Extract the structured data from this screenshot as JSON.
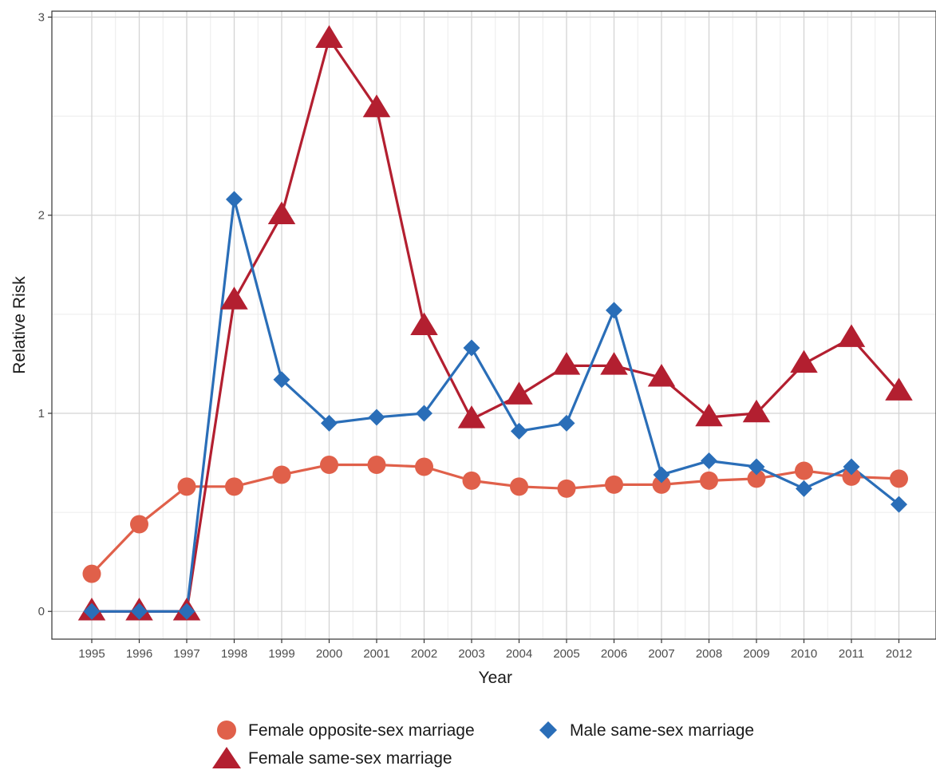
{
  "chart_data": {
    "type": "line",
    "title": "",
    "xlabel": "Year",
    "ylabel": "Relative Risk",
    "x": [
      "1995",
      "1996",
      "1997",
      "1998",
      "1999",
      "2000",
      "2001",
      "2002",
      "2003",
      "2004",
      "2005",
      "2006",
      "2007",
      "2008",
      "2009",
      "2010",
      "2011",
      "2012"
    ],
    "ylim": [
      -0.14,
      3.03
    ],
    "yticks": [
      "0",
      "1",
      "2",
      "3"
    ],
    "grid": true,
    "legend_position": "bottom",
    "series": [
      {
        "name": "Female opposite-sex marriage",
        "marker": "circle",
        "color": "#E0604A",
        "values": [
          0.19,
          0.44,
          0.63,
          0.63,
          0.69,
          0.74,
          0.74,
          0.73,
          0.66,
          0.63,
          0.62,
          0.64,
          0.64,
          0.66,
          0.67,
          0.71,
          0.68,
          0.67
        ]
      },
      {
        "name": "Male same-sex marriage",
        "marker": "diamond",
        "color": "#2A6EB8",
        "values": [
          0,
          0,
          0,
          2.08,
          1.17,
          0.95,
          0.98,
          1.0,
          1.33,
          0.91,
          0.95,
          1.52,
          0.69,
          0.76,
          0.73,
          0.62,
          0.73,
          0.54
        ]
      },
      {
        "name": "Female same-sex marriage",
        "marker": "triangle",
        "color": "#B31F30",
        "values": [
          0,
          0,
          0,
          1.57,
          2.0,
          2.89,
          2.54,
          1.44,
          0.97,
          1.09,
          1.24,
          1.24,
          1.18,
          0.98,
          1.0,
          1.25,
          1.38,
          1.11
        ]
      }
    ]
  }
}
